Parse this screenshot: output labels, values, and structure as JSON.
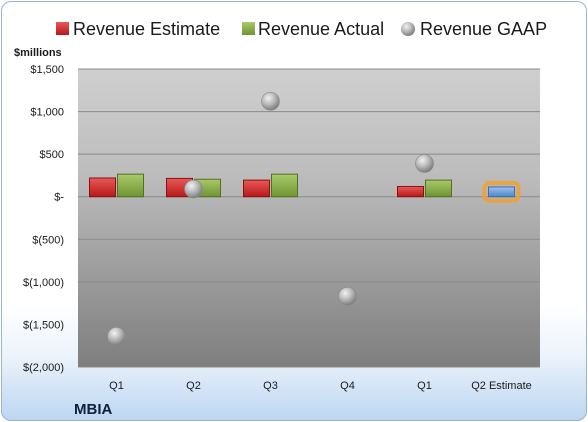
{
  "chart_data": {
    "type": "bar",
    "categories": [
      "Q1",
      "Q2",
      "Q3",
      "Q4",
      "Q1",
      "Q2 Estimate"
    ],
    "series": [
      {
        "name": "Revenue Estimate",
        "kind": "bar",
        "color": "#d42a2a",
        "values": [
          220,
          215,
          195,
          null,
          120,
          null
        ]
      },
      {
        "name": "Revenue Actual",
        "kind": "bar",
        "color": "#8db04a",
        "values": [
          265,
          205,
          265,
          null,
          195,
          null
        ]
      },
      {
        "name": "Revenue GAAP",
        "kind": "marker",
        "color": "#b5b5b5",
        "values": [
          -1640,
          90,
          1120,
          -1170,
          390,
          null
        ]
      }
    ],
    "estimate_bar": {
      "category": "Q2 Estimate",
      "value": 115,
      "color": "#6fa1d8",
      "highlight": "#f0a030"
    },
    "ylabel": "$millions",
    "ylim": [
      -2000,
      1500
    ],
    "yticks": [
      1500,
      1000,
      500,
      0,
      -500,
      -1000,
      -1500,
      -2000
    ],
    "ytick_labels": [
      "$1,500",
      "$1,000",
      "$500",
      "$-",
      "$(500)",
      "$(1,000)",
      "$(1,500)",
      "$(2,000)"
    ],
    "grid": true,
    "legend_position": "top"
  },
  "company": "MBIA"
}
